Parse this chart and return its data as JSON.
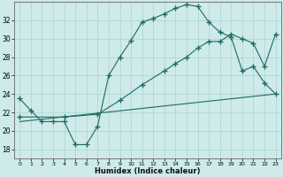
{
  "xlabel": "Humidex (Indice chaleur)",
  "background_color": "#ceeaea",
  "line_color": "#1e6b5e",
  "xlim": [
    -0.5,
    23.5
  ],
  "ylim": [
    17.0,
    34.0
  ],
  "xticks": [
    0,
    1,
    2,
    3,
    4,
    5,
    6,
    7,
    8,
    9,
    10,
    11,
    12,
    13,
    14,
    15,
    16,
    17,
    18,
    19,
    20,
    21,
    22,
    23
  ],
  "yticks": [
    18,
    20,
    22,
    24,
    26,
    28,
    30,
    32
  ],
  "line1_x": [
    0,
    1,
    2,
    3,
    4,
    5,
    6,
    7,
    8,
    9,
    10,
    11,
    12,
    13,
    14,
    15,
    16,
    17,
    18,
    19,
    20,
    21,
    22,
    23
  ],
  "line1_y": [
    23.5,
    22.2,
    21.0,
    21.0,
    21.0,
    18.5,
    18.5,
    20.5,
    26.0,
    28.0,
    29.8,
    31.8,
    32.2,
    32.7,
    33.3,
    33.7,
    33.5,
    31.8,
    30.7,
    30.2,
    26.5,
    27.0,
    25.2,
    24.0
  ],
  "line2_x": [
    0,
    4,
    7,
    9,
    11,
    13,
    14,
    15,
    16,
    17,
    18,
    19,
    20,
    21,
    22,
    23
  ],
  "line2_y": [
    21.5,
    21.5,
    21.8,
    23.3,
    25.0,
    26.5,
    27.3,
    28.0,
    29.0,
    29.7,
    29.7,
    30.5,
    30.0,
    29.5,
    27.0,
    30.5
  ],
  "line3_x": [
    0,
    23
  ],
  "line3_y": [
    21.0,
    24.0
  ],
  "marker_style": "+",
  "marker_size": 4,
  "marker_lw": 1.0
}
